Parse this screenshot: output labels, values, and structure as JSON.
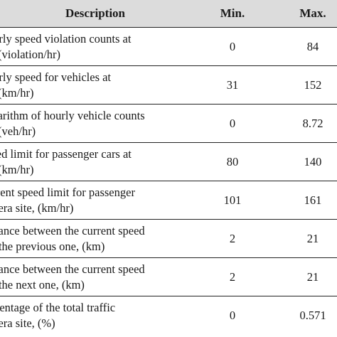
{
  "table": {
    "headers": {
      "description": "Description",
      "min": "Min.",
      "max": "Max."
    },
    "rows": [
      {
        "description_l1": "Hourly speed violation counts at",
        "description_l2": "site (violation/hr)",
        "min": "0",
        "max": "84"
      },
      {
        "description_l1": "Hourly speed for vehicles at",
        "description_l2": "site (km/hr)",
        "min": "31",
        "max": "152"
      },
      {
        "description_l1": "Logarithm of hourly vehicle counts",
        "description_l2": "site (veh/hr)",
        "min": "0",
        "max": "8.72"
      },
      {
        "description_l1": "Speed limit for passenger cars at",
        "description_l2": "site (km/hr)",
        "min": "80",
        "max": "140"
      },
      {
        "description_l1": "Current speed limit for passenger",
        "description_l2": "camera site, (km/hr)",
        "min": "101",
        "max": "161"
      },
      {
        "description_l1": "Distance between the current speed",
        "description_l2": "and the previous one, (km)",
        "min": "2",
        "max": "21"
      },
      {
        "description_l1": "Distance between the current speed",
        "description_l2": "and the next one, (km)",
        "min": "2",
        "max": "21"
      },
      {
        "description_l1": "Percentage of the total traffic",
        "description_l2": "camera site, (%)",
        "min": "0",
        "max": "0.571"
      }
    ]
  }
}
